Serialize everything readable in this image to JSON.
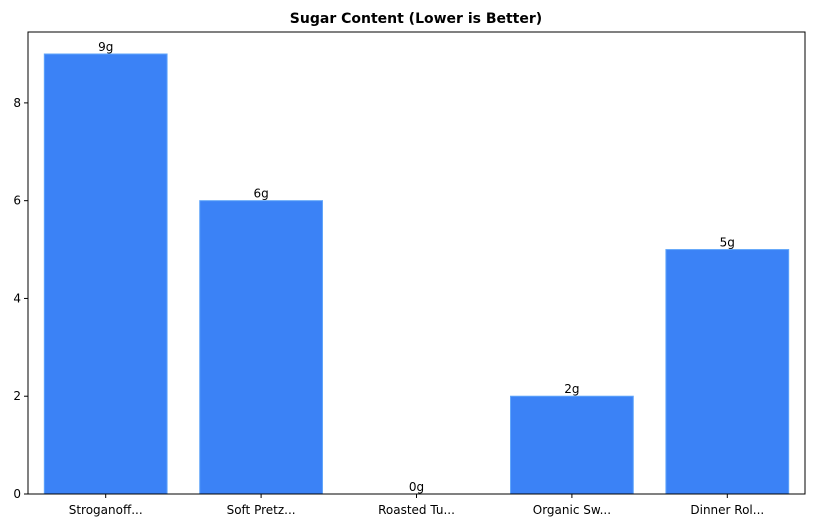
{
  "chart_data": {
    "type": "bar",
    "title": "Sugar Content (Lower is Better)",
    "xlabel": "",
    "ylabel": "",
    "categories": [
      "Stroganoff...",
      "Soft Pretz...",
      "Roasted Tu...",
      "Organic Sw...",
      "Dinner Rol..."
    ],
    "values": [
      9,
      6,
      0,
      2,
      5
    ],
    "data_labels": [
      "9g",
      "6g",
      "0g",
      "2g",
      "5g"
    ],
    "ylim": [
      0,
      9.45
    ],
    "yticks": [
      0,
      2,
      4,
      6,
      8
    ],
    "grid": false,
    "bar_color": "#3b82f6",
    "bar_edge_color": "#60a5fa"
  }
}
